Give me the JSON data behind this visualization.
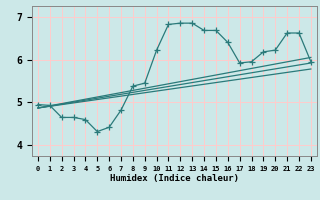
{
  "title": "",
  "xlabel": "Humidex (Indice chaleur)",
  "bg_color": "#cce8e8",
  "grid_color": "#ffcccc",
  "line_color": "#2a7a7a",
  "xlim": [
    -0.5,
    23.5
  ],
  "ylim": [
    3.75,
    7.25
  ],
  "yticks": [
    4,
    5,
    6,
    7
  ],
  "xtick_labels": [
    "0",
    "1",
    "2",
    "3",
    "4",
    "5",
    "6",
    "7",
    "8",
    "9",
    "10",
    "11",
    "12",
    "13",
    "14",
    "15",
    "16",
    "17",
    "18",
    "19",
    "20",
    "21",
    "22",
    "23"
  ],
  "main_x": [
    0,
    1,
    2,
    3,
    4,
    5,
    6,
    7,
    8,
    9,
    10,
    11,
    12,
    13,
    14,
    15,
    16,
    17,
    18,
    19,
    20,
    21,
    22,
    23
  ],
  "main_y": [
    4.95,
    4.93,
    4.65,
    4.65,
    4.6,
    4.32,
    4.42,
    4.82,
    5.38,
    5.45,
    6.22,
    6.82,
    6.85,
    6.85,
    6.68,
    6.68,
    6.4,
    5.92,
    5.95,
    6.18,
    6.22,
    6.62,
    6.62,
    5.95
  ],
  "trend1_x": [
    0,
    23
  ],
  "trend1_y": [
    4.87,
    5.78
  ],
  "trend2_x": [
    0,
    23
  ],
  "trend2_y": [
    4.87,
    5.92
  ],
  "trend3_x": [
    0,
    23
  ],
  "trend3_y": [
    4.87,
    6.05
  ]
}
